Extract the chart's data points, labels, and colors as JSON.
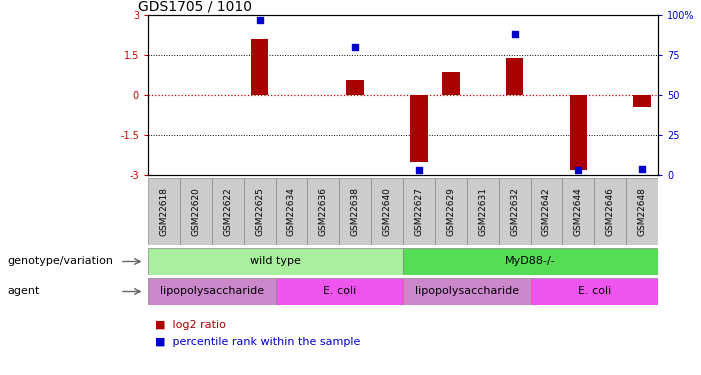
{
  "title": "GDS1705 / 1010",
  "samples": [
    "GSM22618",
    "GSM22620",
    "GSM22622",
    "GSM22625",
    "GSM22634",
    "GSM22636",
    "GSM22638",
    "GSM22640",
    "GSM22627",
    "GSM22629",
    "GSM22631",
    "GSM22632",
    "GSM22642",
    "GSM22644",
    "GSM22646",
    "GSM22648"
  ],
  "log2_ratio": [
    0,
    0,
    0,
    2.1,
    0,
    0,
    0.55,
    0,
    -2.5,
    0.85,
    0,
    1.4,
    0,
    -2.8,
    0,
    -0.45
  ],
  "percentile": [
    null,
    null,
    null,
    97,
    null,
    null,
    80,
    null,
    3,
    null,
    null,
    88,
    null,
    3,
    null,
    4
  ],
  "ylim_left": [
    -3,
    3
  ],
  "ylim_right": [
    0,
    100
  ],
  "yticks_left": [
    -3,
    -1.5,
    0,
    1.5,
    3
  ],
  "yticks_left_labels": [
    "-3",
    "-1.5",
    "0",
    "1.5",
    "3"
  ],
  "yticks_right": [
    0,
    25,
    50,
    75,
    100
  ],
  "yticks_right_labels": [
    "0",
    "25",
    "50",
    "75",
    "100%"
  ],
  "bar_color": "#aa0000",
  "dot_color": "#0000cc",
  "left_axis_color": "#cc0000",
  "right_axis_color": "#0000cc",
  "genotype_groups": [
    {
      "label": "wild type",
      "start": 0,
      "end": 8,
      "color": "#aaeea0"
    },
    {
      "label": "MyD88-/-",
      "start": 8,
      "end": 16,
      "color": "#55dd55"
    }
  ],
  "agent_groups": [
    {
      "label": "lipopolysaccharide",
      "start": 0,
      "end": 4,
      "color": "#cc88cc"
    },
    {
      "label": "E. coli",
      "start": 4,
      "end": 8,
      "color": "#ee55ee"
    },
    {
      "label": "lipopolysaccharide",
      "start": 8,
      "end": 12,
      "color": "#cc88cc"
    },
    {
      "label": "E. coli",
      "start": 12,
      "end": 16,
      "color": "#ee55ee"
    }
  ],
  "legend_items": [
    {
      "label": "log2 ratio",
      "color": "#aa0000"
    },
    {
      "label": "percentile rank within the sample",
      "color": "#0000cc"
    }
  ],
  "sample_box_color": "#cccccc",
  "tick_fontsize": 7,
  "title_fontsize": 10,
  "row_label_fontsize": 8,
  "sample_fontsize": 6.5,
  "legend_fontsize": 8,
  "bar_width": 0.55,
  "dot_size": 18
}
